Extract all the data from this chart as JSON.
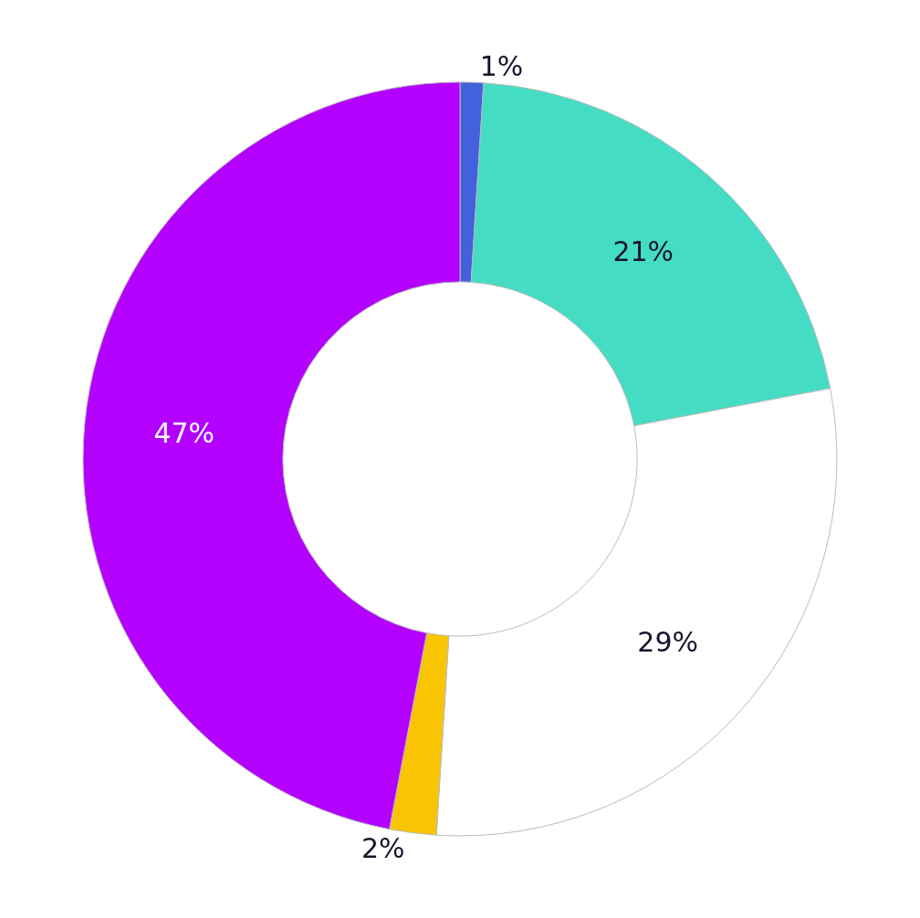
{
  "chart_data": {
    "type": "donut",
    "categories": [
      null,
      null,
      null,
      null,
      null
    ],
    "values": [
      1,
      21,
      29,
      2,
      47
    ],
    "value_labels": [
      "1%",
      "21%",
      "29%",
      "2%",
      "47%"
    ],
    "colors": [
      "#4361dc",
      "#45dcc4",
      "#ffffff",
      "#f9c502",
      "#b300ff"
    ],
    "legend": false
  }
}
